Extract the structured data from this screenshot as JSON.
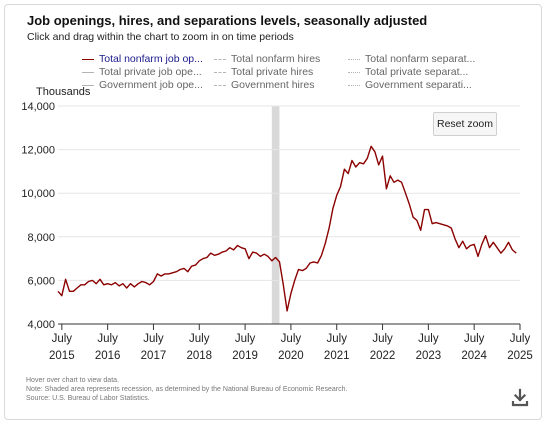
{
  "header": {
    "title": "Job openings, hires, and separations levels, seasonally adjusted",
    "subtitle": "Click and drag within the chart to zoom in on time periods"
  },
  "legend": [
    {
      "label": "Total nonfarm job op...",
      "style": "solid",
      "color": "#8b0000",
      "active": true
    },
    {
      "label": "Total nonfarm hires",
      "style": "dashed",
      "color": "#b3b3b3",
      "active": false
    },
    {
      "label": "Total nonfarm separat...",
      "style": "dotted",
      "color": "#b3b3b3",
      "active": false
    },
    {
      "label": "Total private job ope...",
      "style": "solid",
      "color": "#b3b3b3",
      "active": false
    },
    {
      "label": "Total private hires",
      "style": "dashed",
      "color": "#b3b3b3",
      "active": false
    },
    {
      "label": "Total private separat...",
      "style": "dotted",
      "color": "#b3b3b3",
      "active": false
    },
    {
      "label": "Government job ope...",
      "style": "solid",
      "color": "#b3b3b3",
      "active": false
    },
    {
      "label": "Government hires",
      "style": "dashed",
      "color": "#b3b3b3",
      "active": false
    },
    {
      "label": "Government separati...",
      "style": "dotted",
      "color": "#b3b3b3",
      "active": false
    }
  ],
  "controls": {
    "reset_zoom": "Reset zoom"
  },
  "notes": {
    "hover": "Hover over chart to view data.",
    "recession": "Note: Shaded area represents recession, as determined by the National Bureau of Economic Research.",
    "source": "Source: U.S. Bureau of Labor Statistics."
  },
  "icons": {
    "download": "download-icon"
  },
  "chart_data": {
    "type": "line",
    "title": "Job openings, hires, and separations levels, seasonally adjusted",
    "ylabel": "Thousands",
    "xlabel": "",
    "ylim": [
      4000,
      14000
    ],
    "yticks": [
      4000,
      6000,
      8000,
      10000,
      12000,
      14000
    ],
    "ytick_labels": [
      "4,000",
      "6,000",
      "8,000",
      "10,000",
      "12,000",
      "14,000"
    ],
    "xticks": [
      {
        "date": "2015-07",
        "month": "July",
        "year": "2015"
      },
      {
        "date": "2016-07",
        "month": "July",
        "year": "2016"
      },
      {
        "date": "2017-07",
        "month": "July",
        "year": "2017"
      },
      {
        "date": "2018-07",
        "month": "July",
        "year": "2018"
      },
      {
        "date": "2019-07",
        "month": "July",
        "year": "2019"
      },
      {
        "date": "2020-07",
        "month": "July",
        "year": "2020"
      },
      {
        "date": "2021-07",
        "month": "July",
        "year": "2021"
      },
      {
        "date": "2022-07",
        "month": "July",
        "year": "2022"
      },
      {
        "date": "2023-07",
        "month": "July",
        "year": "2023"
      },
      {
        "date": "2024-07",
        "month": "July",
        "year": "2024"
      },
      {
        "date": "2025-07",
        "month": "July",
        "year": "2025"
      }
    ],
    "x_range": [
      "2015-06",
      "2025-07"
    ],
    "recession": {
      "start": "2020-02",
      "end": "2020-04",
      "color": "#d9d9d9"
    },
    "grid": "horizontal",
    "series": [
      {
        "name": "Total nonfarm job openings",
        "color": "#8b0000",
        "points": [
          [
            "2015-06",
            5500
          ],
          [
            "2015-07",
            5300
          ],
          [
            "2015-08",
            6050
          ],
          [
            "2015-09",
            5500
          ],
          [
            "2015-10",
            5500
          ],
          [
            "2015-11",
            5650
          ],
          [
            "2015-12",
            5800
          ],
          [
            "2016-01",
            5800
          ],
          [
            "2016-02",
            5950
          ],
          [
            "2016-03",
            6000
          ],
          [
            "2016-04",
            5850
          ],
          [
            "2016-05",
            6050
          ],
          [
            "2016-06",
            5800
          ],
          [
            "2016-07",
            5850
          ],
          [
            "2016-08",
            5800
          ],
          [
            "2016-09",
            5900
          ],
          [
            "2016-10",
            5750
          ],
          [
            "2016-11",
            5850
          ],
          [
            "2016-12",
            5650
          ],
          [
            "2017-01",
            5850
          ],
          [
            "2017-02",
            5700
          ],
          [
            "2017-03",
            5850
          ],
          [
            "2017-04",
            5950
          ],
          [
            "2017-05",
            5900
          ],
          [
            "2017-06",
            5800
          ],
          [
            "2017-07",
            5950
          ],
          [
            "2017-08",
            6300
          ],
          [
            "2017-09",
            6200
          ],
          [
            "2017-10",
            6300
          ],
          [
            "2017-11",
            6300
          ],
          [
            "2017-12",
            6350
          ],
          [
            "2018-01",
            6400
          ],
          [
            "2018-02",
            6500
          ],
          [
            "2018-03",
            6550
          ],
          [
            "2018-04",
            6400
          ],
          [
            "2018-05",
            6650
          ],
          [
            "2018-06",
            6700
          ],
          [
            "2018-07",
            6900
          ],
          [
            "2018-08",
            7000
          ],
          [
            "2018-09",
            7050
          ],
          [
            "2018-10",
            7250
          ],
          [
            "2018-11",
            7150
          ],
          [
            "2018-12",
            7200
          ],
          [
            "2019-01",
            7300
          ],
          [
            "2019-02",
            7350
          ],
          [
            "2019-03",
            7500
          ],
          [
            "2019-04",
            7400
          ],
          [
            "2019-05",
            7600
          ],
          [
            "2019-06",
            7500
          ],
          [
            "2019-07",
            7450
          ],
          [
            "2019-08",
            7000
          ],
          [
            "2019-09",
            7300
          ],
          [
            "2019-10",
            7250
          ],
          [
            "2019-11",
            7100
          ],
          [
            "2019-12",
            7200
          ],
          [
            "2020-01",
            7100
          ],
          [
            "2020-02",
            6900
          ],
          [
            "2020-03",
            7050
          ],
          [
            "2020-04",
            6850
          ],
          [
            "2020-05",
            5800
          ],
          [
            "2020-06",
            4600
          ],
          [
            "2020-07",
            5400
          ],
          [
            "2020-08",
            6000
          ],
          [
            "2020-09",
            6500
          ],
          [
            "2020-10",
            6450
          ],
          [
            "2020-11",
            6550
          ],
          [
            "2020-12",
            6800
          ],
          [
            "2021-01",
            6850
          ],
          [
            "2021-02",
            6800
          ],
          [
            "2021-03",
            7150
          ],
          [
            "2021-04",
            7700
          ],
          [
            "2021-05",
            8400
          ],
          [
            "2021-06",
            9300
          ],
          [
            "2021-07",
            9900
          ],
          [
            "2021-08",
            10300
          ],
          [
            "2021-09",
            11100
          ],
          [
            "2021-10",
            10900
          ],
          [
            "2021-11",
            11500
          ],
          [
            "2021-12",
            11200
          ],
          [
            "2022-01",
            11400
          ],
          [
            "2022-02",
            11350
          ],
          [
            "2022-03",
            11600
          ],
          [
            "2022-04",
            12150
          ],
          [
            "2022-05",
            11900
          ],
          [
            "2022-06",
            11300
          ],
          [
            "2022-07",
            11700
          ],
          [
            "2022-08",
            10200
          ],
          [
            "2022-09",
            10800
          ],
          [
            "2022-10",
            10500
          ],
          [
            "2022-11",
            10600
          ],
          [
            "2022-12",
            10500
          ],
          [
            "2023-01",
            10000
          ],
          [
            "2023-02",
            9500
          ],
          [
            "2023-03",
            8900
          ],
          [
            "2023-04",
            8750
          ],
          [
            "2023-05",
            8300
          ],
          [
            "2023-06",
            9250
          ],
          [
            "2023-07",
            9250
          ],
          [
            "2023-08",
            8600
          ],
          [
            "2023-09",
            8650
          ],
          [
            "2023-10",
            8600
          ],
          [
            "2023-11",
            8550
          ],
          [
            "2023-12",
            8500
          ],
          [
            "2024-01",
            8400
          ],
          [
            "2024-02",
            7900
          ],
          [
            "2024-03",
            7500
          ],
          [
            "2024-04",
            7800
          ],
          [
            "2024-05",
            7450
          ],
          [
            "2024-06",
            7600
          ],
          [
            "2024-07",
            7650
          ],
          [
            "2024-08",
            7100
          ],
          [
            "2024-09",
            7650
          ],
          [
            "2024-10",
            8050
          ],
          [
            "2024-11",
            7500
          ],
          [
            "2024-12",
            7750
          ],
          [
            "2025-01",
            7500
          ],
          [
            "2025-02",
            7250
          ],
          [
            "2025-03",
            7450
          ],
          [
            "2025-04",
            7750
          ],
          [
            "2025-05",
            7400
          ],
          [
            "2025-06",
            7250
          ]
        ]
      }
    ]
  }
}
